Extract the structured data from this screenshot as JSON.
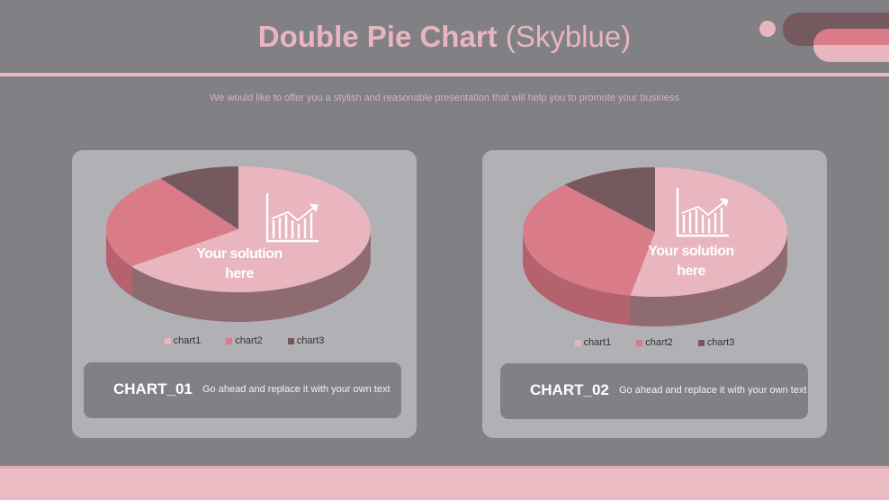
{
  "header": {
    "title_bold": "Double Pie Chart",
    "title_light": "(Skyblue)",
    "subtitle": "We would like to offer you a stylish and reasonable presentation that will help you to promote your business"
  },
  "colors": {
    "background": "#808085",
    "panel": "#b1b0b5",
    "chart1": "#e9b5bf",
    "chart2": "#d97c88",
    "chart3": "#76585f"
  },
  "chart_data": [
    {
      "type": "pie",
      "style": "3d",
      "categories": [
        "chart1",
        "chart2",
        "chart3"
      ],
      "values": [
        65,
        25,
        10
      ],
      "legend": "bottom",
      "overlay_text": [
        "Your solution",
        "here"
      ],
      "overlay_icon": "bar-chart-growth-icon"
    },
    {
      "type": "pie",
      "style": "3d",
      "categories": [
        "chart1",
        "chart2",
        "chart3"
      ],
      "values": [
        53,
        35,
        12
      ],
      "legend": "bottom",
      "overlay_text": [
        "Your solution",
        "here"
      ],
      "overlay_icon": "bar-chart-growth-icon"
    }
  ],
  "cards": [
    {
      "name": "CHART_01",
      "desc": "Go ahead and replace it with your own text"
    },
    {
      "name": "CHART_02",
      "desc": "Go ahead and replace it with your own text"
    }
  ]
}
